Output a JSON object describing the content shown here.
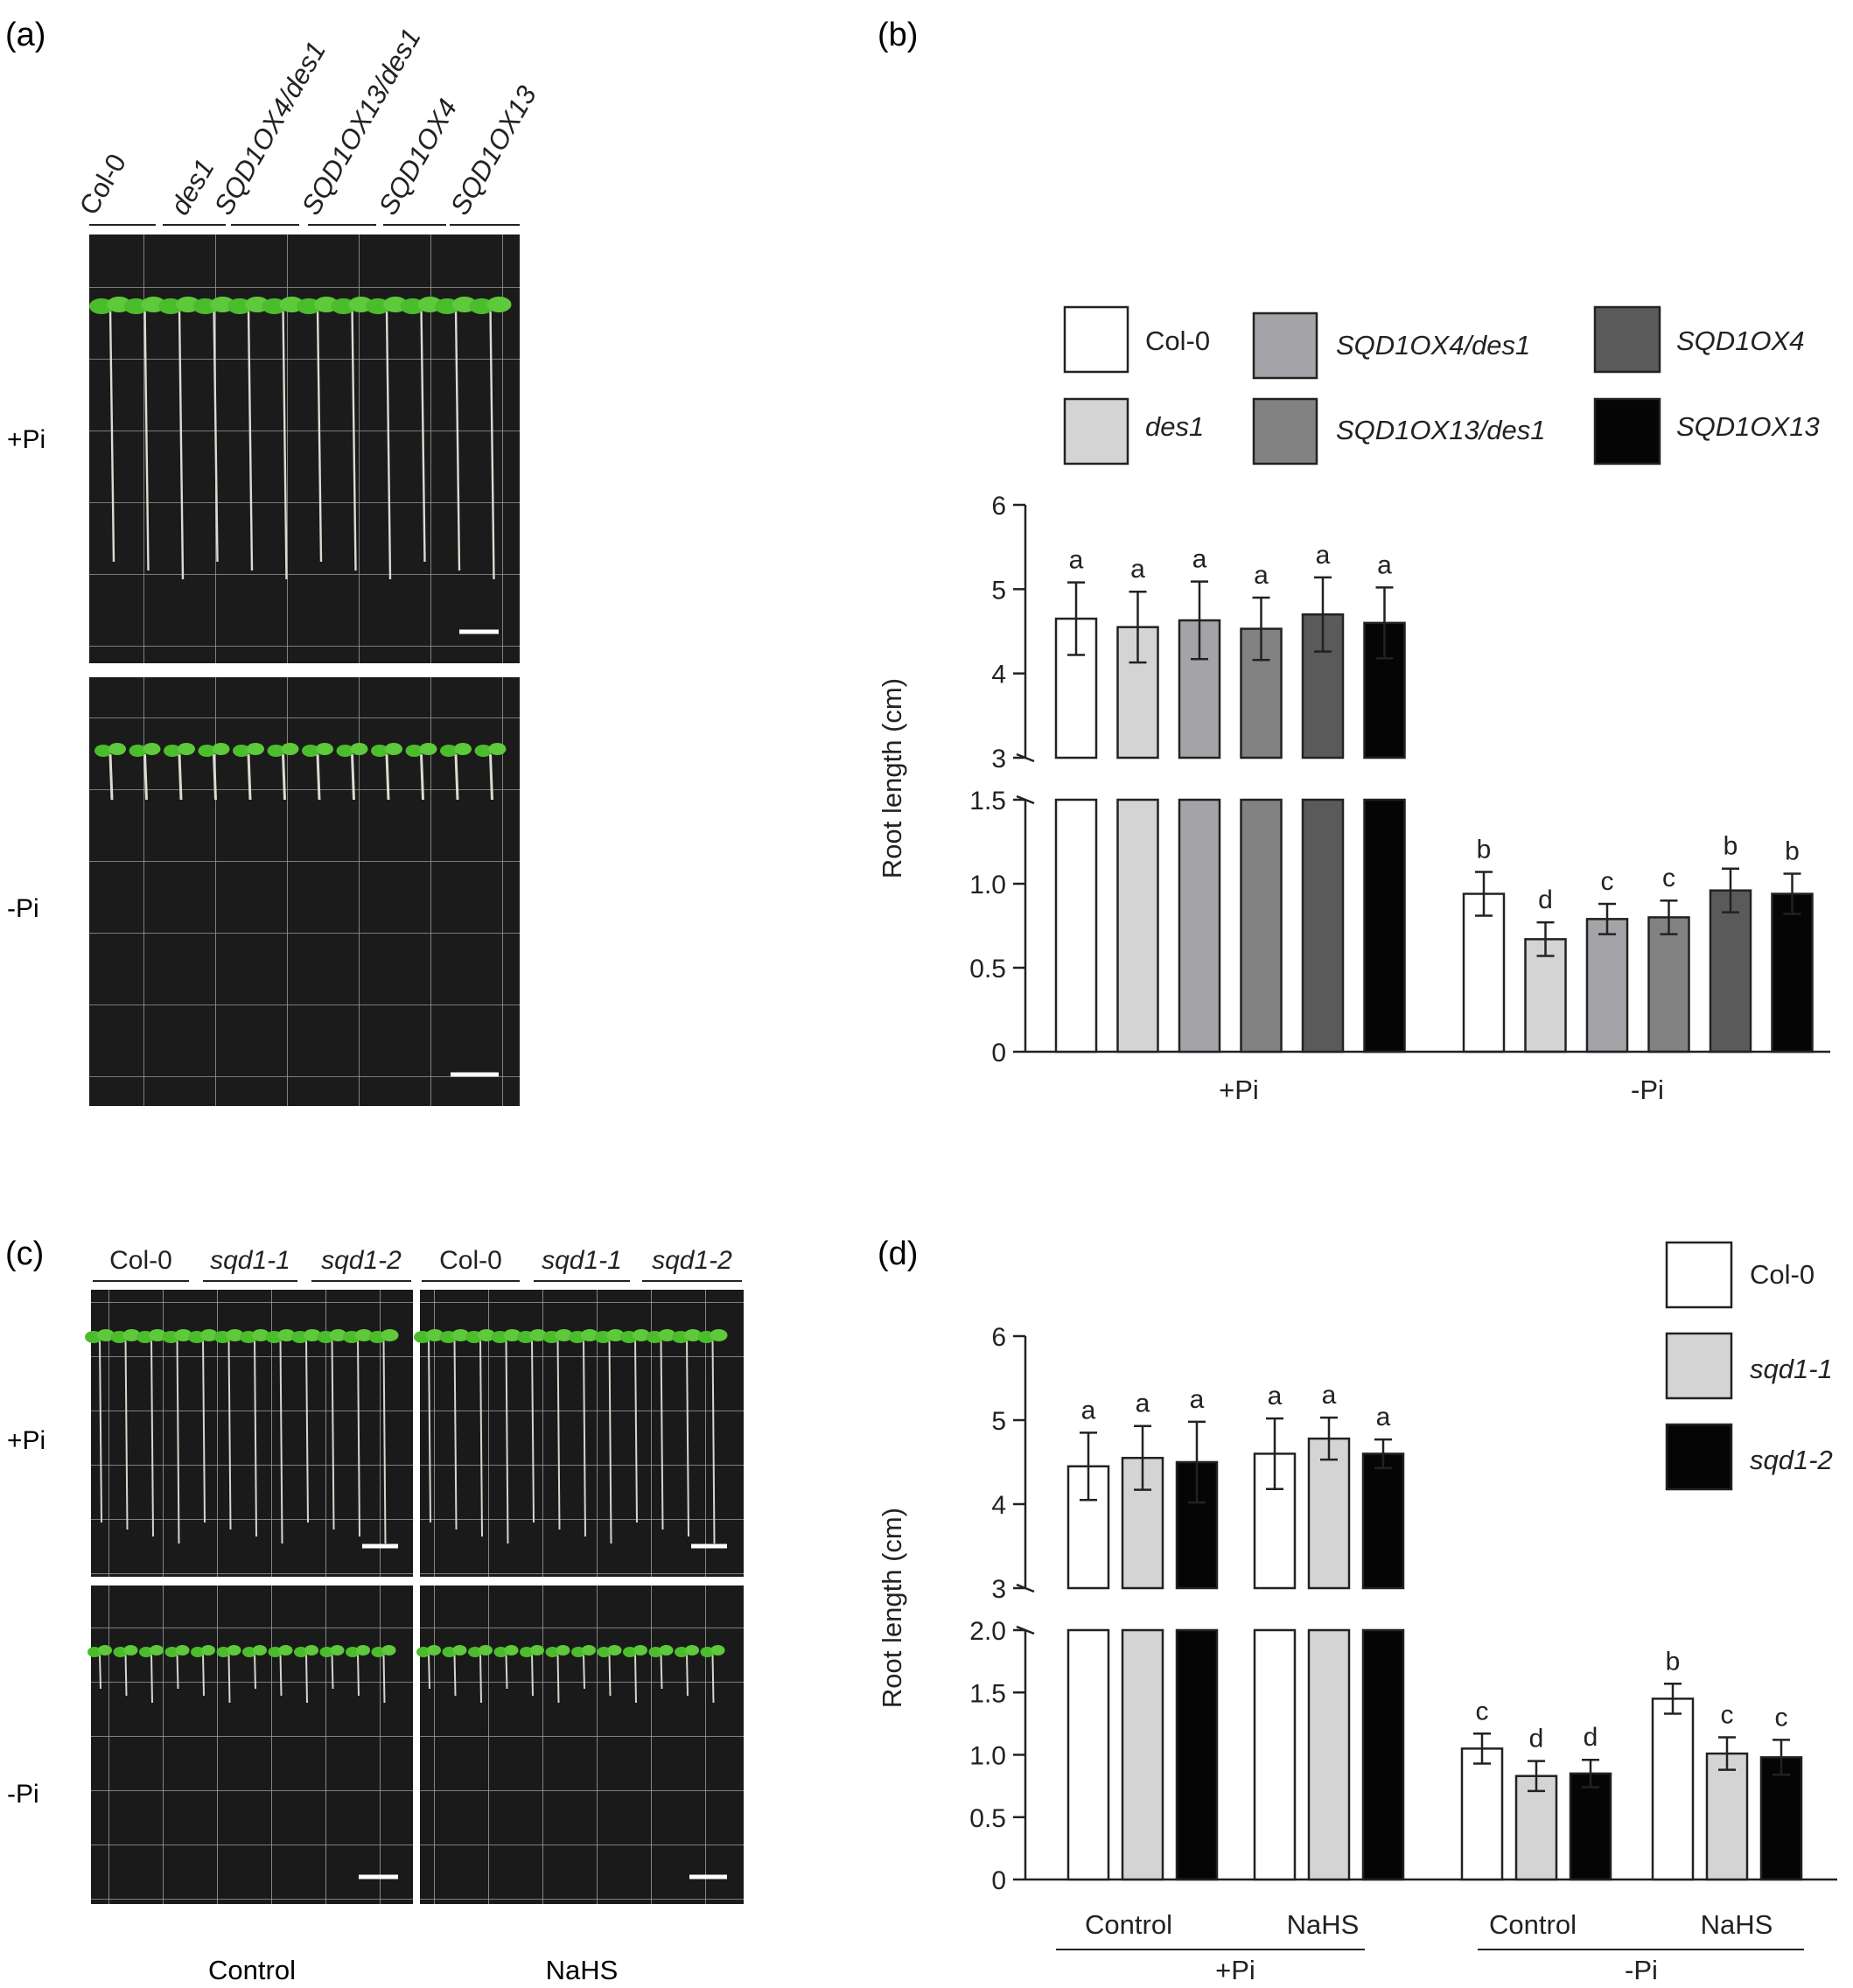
{
  "panel_a": {
    "label": "(a)",
    "genotypes": [
      "Col-0",
      "des1",
      "SQD1OX4/des1",
      "SQD1OX13/des1",
      "SQD1OX4",
      "SQD1OX13"
    ],
    "rows": [
      "+Pi",
      "-Pi"
    ]
  },
  "panel_b": {
    "label": "(b)"
  },
  "panel_c": {
    "label": "(c)",
    "genotypes": [
      "Col-0",
      "sqd1-1",
      "sqd1-2",
      "Col-0",
      "sqd1-1",
      "sqd1-2"
    ],
    "rows": [
      "+Pi",
      "-Pi"
    ],
    "columns": [
      "Control",
      "NaHS"
    ]
  },
  "panel_d": {
    "label": "(d)"
  },
  "colors": {
    "Col-0": "#ffffff",
    "des1": "#d4d4d4",
    "SQD1OX4/des1": "#a4a4a8",
    "SQD1OX13/des1": "#828282",
    "SQD1OX4": "#5a5a5a",
    "SQD1OX13": "#050505",
    "sqd1-1": "#d4d4d4",
    "sqd1-2": "#050505"
  },
  "chart_data": [
    {
      "type": "bar",
      "panel": "(b)",
      "ylabel": "Root length (cm)",
      "y_axis_break": [
        1.5,
        3
      ],
      "yticks_lower": [
        "0",
        "0.5",
        "1.0",
        "1.5"
      ],
      "yticks_upper": [
        "3",
        "4",
        "5",
        "6"
      ],
      "ylim": [
        0,
        6
      ],
      "groups": [
        "+Pi",
        "-Pi"
      ],
      "legend": [
        "Col-0",
        "des1",
        "SQD1OX4/des1",
        "SQD1OX13/des1",
        "SQD1OX4",
        "SQD1OX13"
      ],
      "legend_position": "top",
      "series": [
        {
          "name": "Col-0",
          "values": [
            4.65,
            0.94
          ],
          "errors": [
            0.43,
            0.13
          ],
          "letters": [
            "a",
            "b"
          ]
        },
        {
          "name": "des1",
          "values": [
            4.55,
            0.67
          ],
          "errors": [
            0.42,
            0.1
          ],
          "letters": [
            "a",
            "d"
          ]
        },
        {
          "name": "SQD1OX4/des1",
          "values": [
            4.63,
            0.79
          ],
          "errors": [
            0.46,
            0.09
          ],
          "letters": [
            "a",
            "c"
          ]
        },
        {
          "name": "SQD1OX13/des1",
          "values": [
            4.53,
            0.8
          ],
          "errors": [
            0.37,
            0.1
          ],
          "letters": [
            "a",
            "c"
          ]
        },
        {
          "name": "SQD1OX4",
          "values": [
            4.7,
            0.96
          ],
          "errors": [
            0.44,
            0.13
          ],
          "letters": [
            "a",
            "b"
          ]
        },
        {
          "name": "SQD1OX13",
          "values": [
            4.6,
            0.94
          ],
          "errors": [
            0.42,
            0.12
          ],
          "letters": [
            "a",
            "b"
          ]
        }
      ]
    },
    {
      "type": "bar",
      "panel": "(d)",
      "ylabel": "Root length (cm)",
      "y_axis_break": [
        2.0,
        3
      ],
      "yticks_lower": [
        "0",
        "0.5",
        "1.0",
        "1.5",
        "2.0"
      ],
      "yticks_upper": [
        "3",
        "4",
        "5",
        "6"
      ],
      "ylim": [
        0,
        6
      ],
      "groups": [
        "Control",
        "NaHS",
        "Control",
        "NaHS"
      ],
      "supergroups": [
        "+Pi",
        "-Pi"
      ],
      "legend": [
        "Col-0",
        "sqd1-1",
        "sqd1-2"
      ],
      "legend_position": "top-right",
      "series": [
        {
          "name": "Col-0",
          "values": [
            4.45,
            4.6,
            1.05,
            1.45
          ],
          "errors": [
            0.4,
            0.42,
            0.12,
            0.12
          ],
          "letters": [
            "a",
            "a",
            "c",
            "b"
          ]
        },
        {
          "name": "sqd1-1",
          "values": [
            4.55,
            4.78,
            0.83,
            1.01
          ],
          "errors": [
            0.38,
            0.25,
            0.12,
            0.13
          ],
          "letters": [
            "a",
            "a",
            "d",
            "c"
          ]
        },
        {
          "name": "sqd1-2",
          "values": [
            4.5,
            4.6,
            0.85,
            0.98
          ],
          "errors": [
            0.48,
            0.17,
            0.11,
            0.14
          ],
          "letters": [
            "a",
            "a",
            "d",
            "c"
          ]
        }
      ]
    }
  ]
}
